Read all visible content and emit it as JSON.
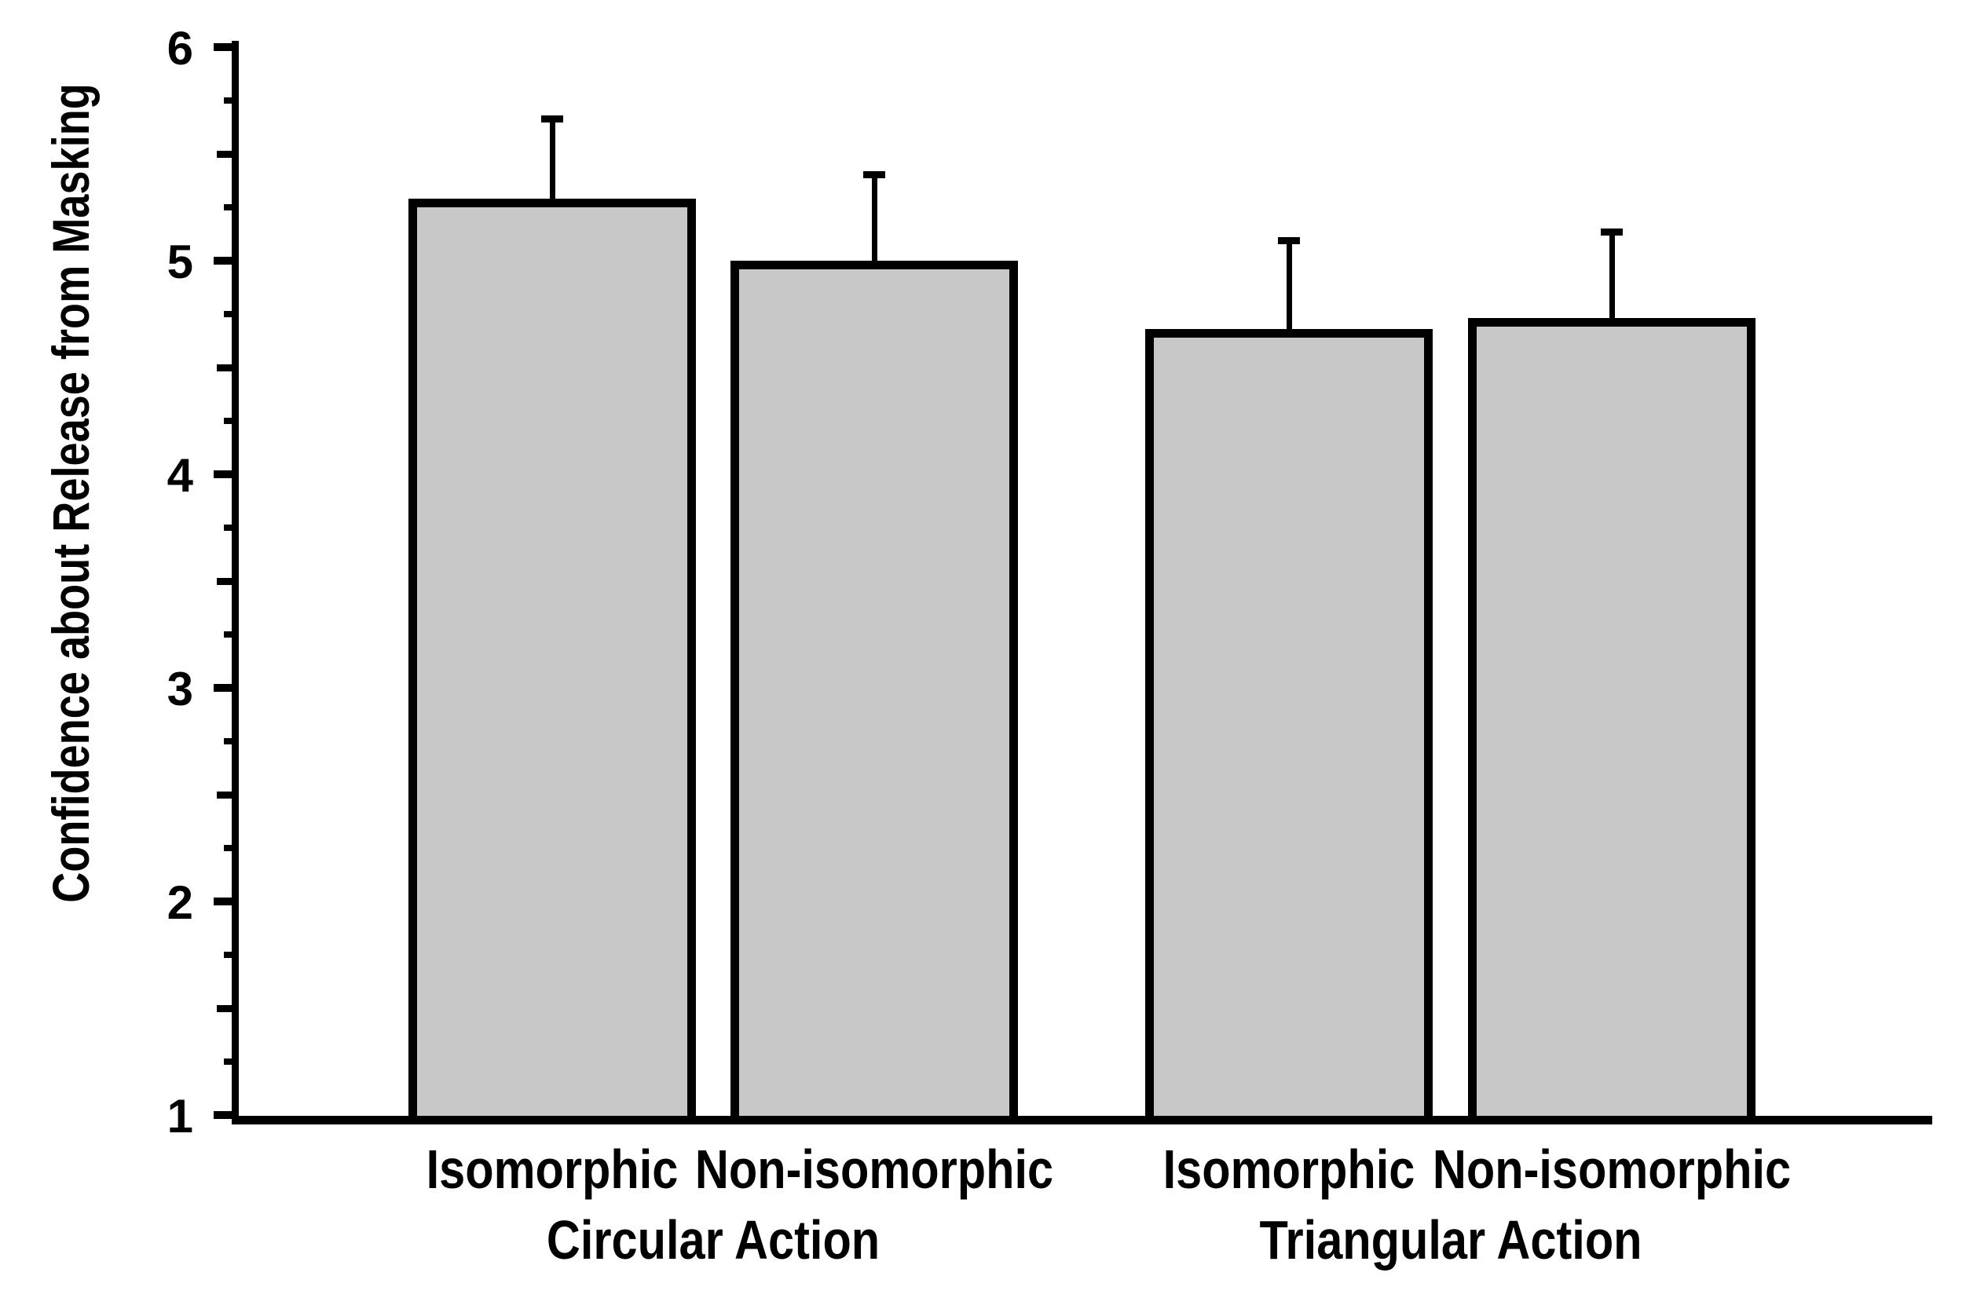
{
  "figure": {
    "background": "#ffffff",
    "ink_color": "#000000"
  },
  "chart_data": {
    "type": "bar",
    "title": "",
    "xlabel": "",
    "ylabel": "Confidence about Release from Masking",
    "ylim": [
      1,
      6
    ],
    "yticks": [
      1,
      2,
      3,
      4,
      5,
      6
    ],
    "yminor_step": 0.25,
    "grid": false,
    "legend_position": "none",
    "bar_color": "#c8c8c8",
    "bar_border_color": "#000000",
    "error_bars": "plus_only",
    "categories": [
      "Isomorphic",
      "Non-isomorphic",
      "Isomorphic",
      "Non-isomorphic"
    ],
    "groups": [
      {
        "label": "Circular Action",
        "bar_indexes": [
          0,
          1
        ]
      },
      {
        "label": "Triangular Action",
        "bar_indexes": [
          2,
          3
        ]
      }
    ],
    "series": [
      {
        "name": "Confidence about Release from Masking",
        "values": [
          5.29,
          5.0,
          4.68,
          4.73
        ],
        "errors_plus": [
          0.39,
          0.42,
          0.43,
          0.42
        ]
      }
    ]
  }
}
